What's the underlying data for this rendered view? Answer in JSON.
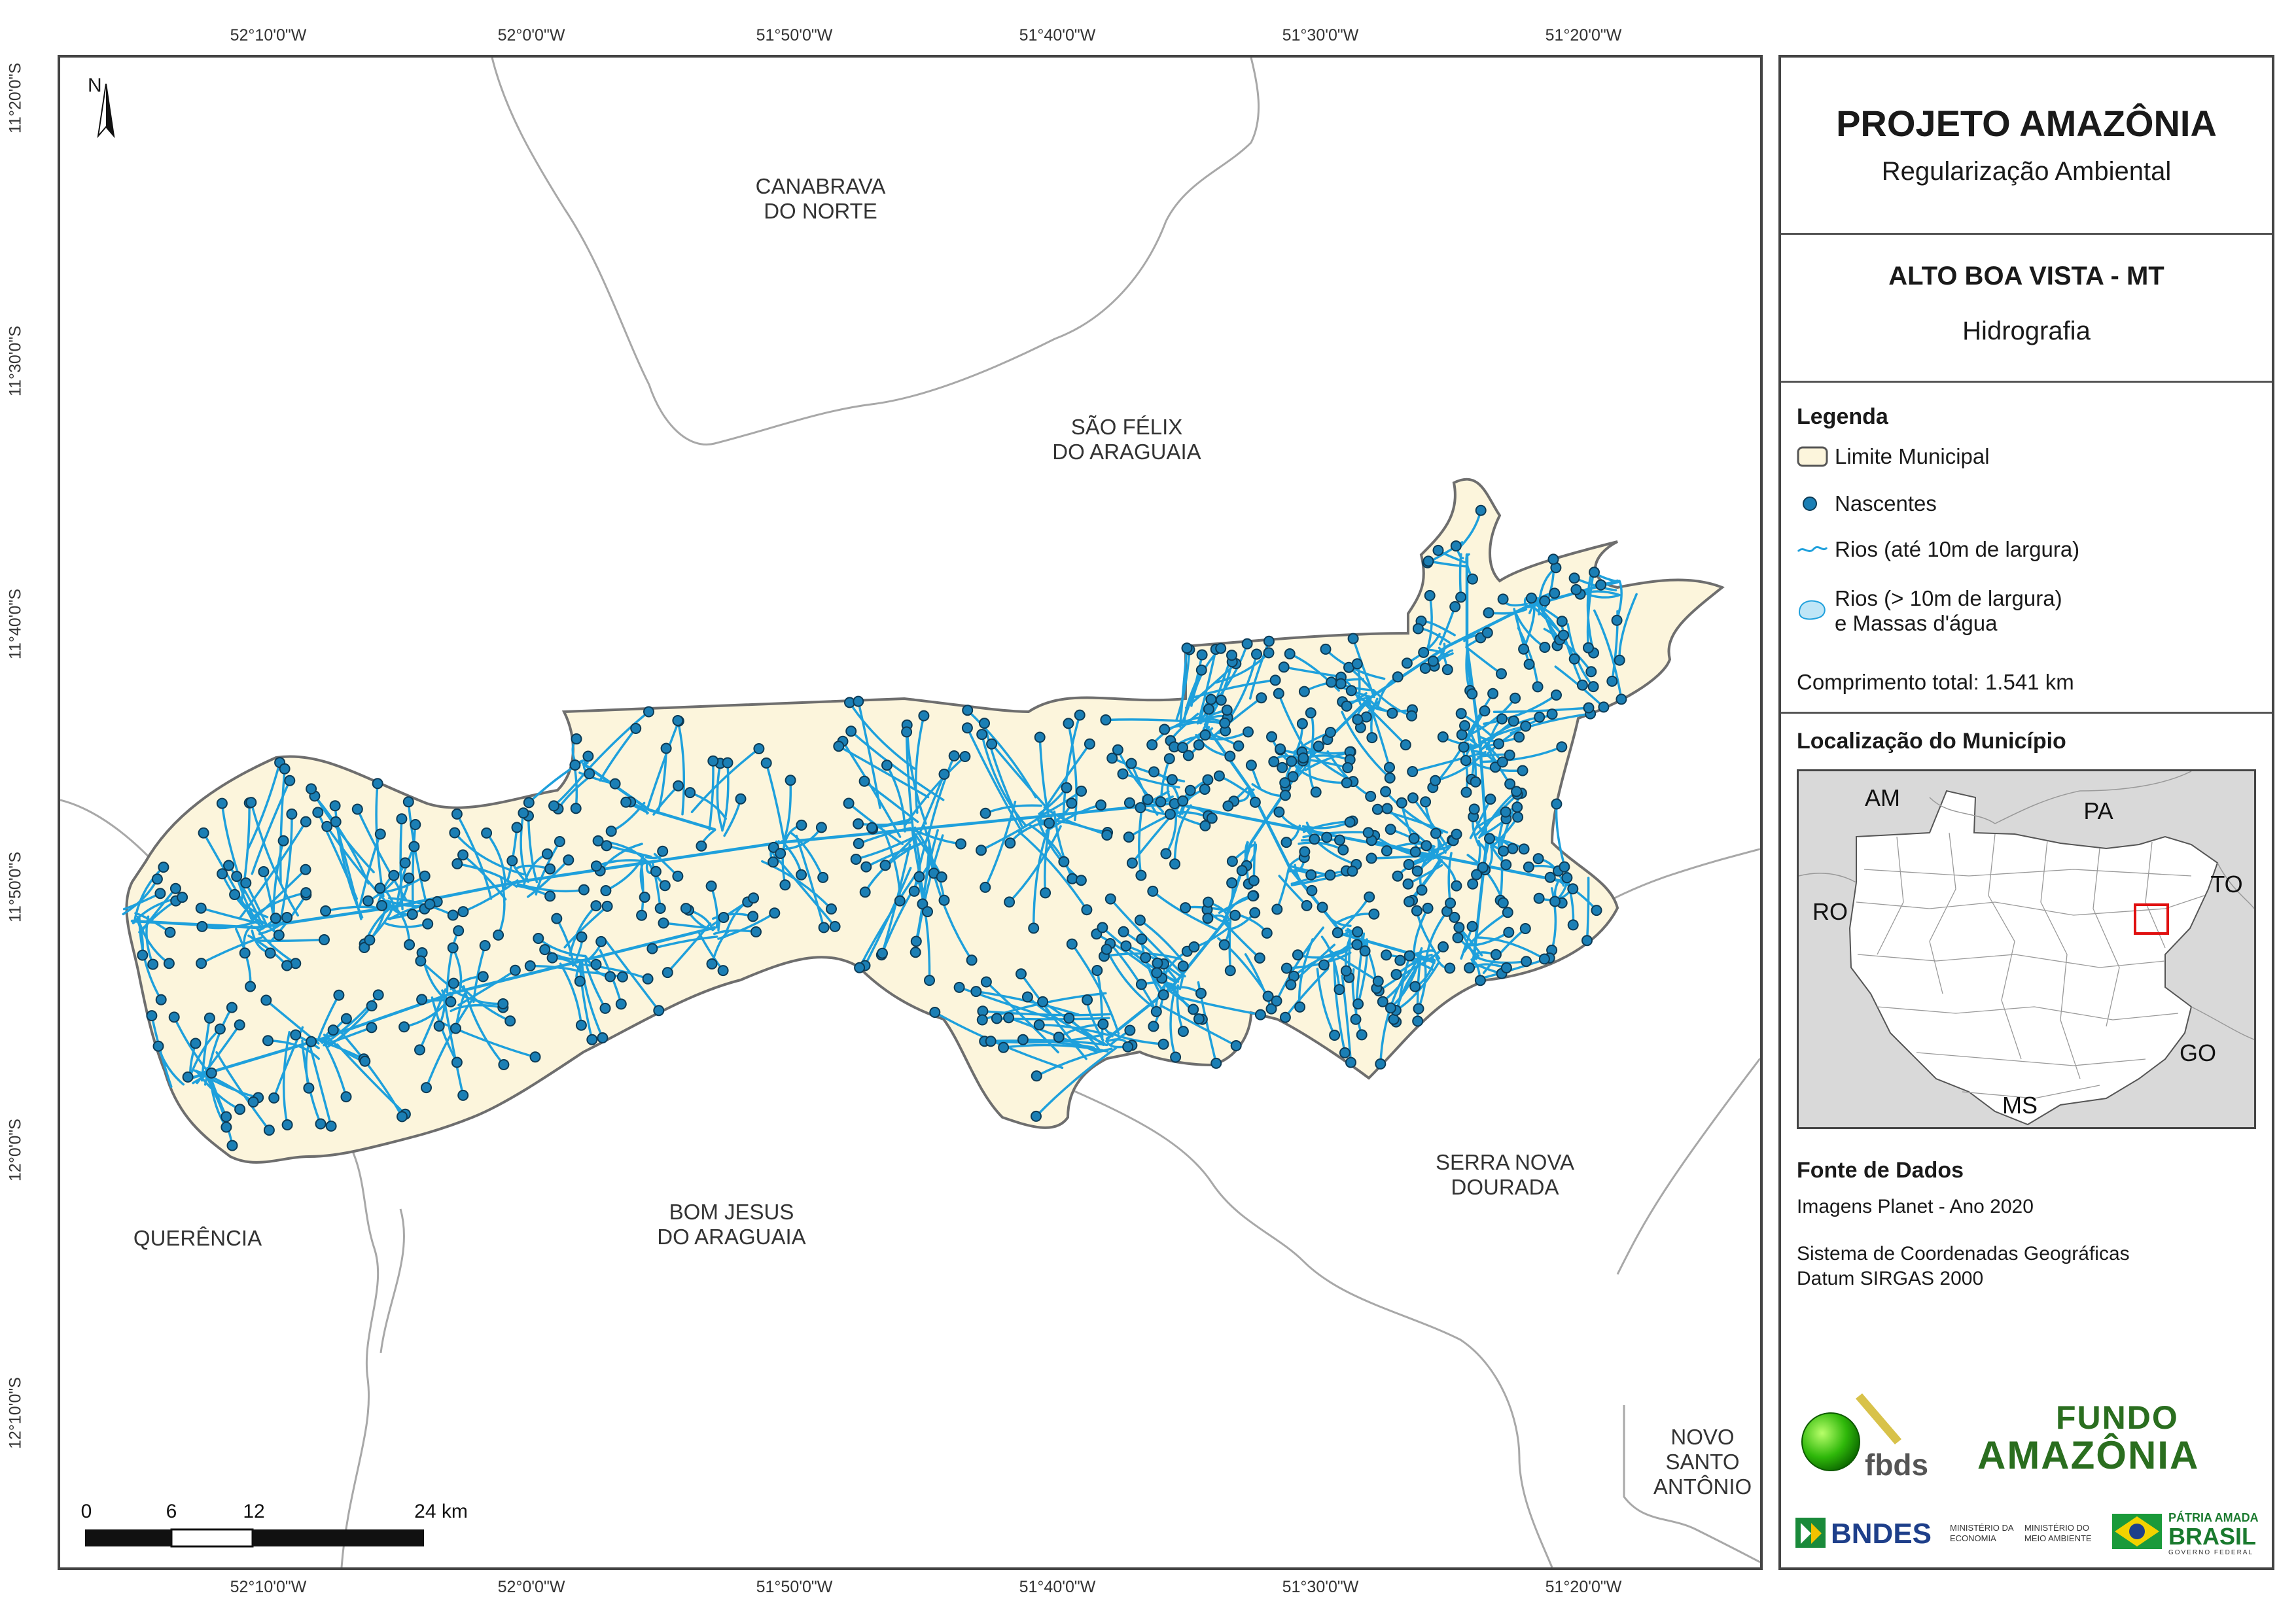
{
  "north_arrow": {
    "label": "N"
  },
  "coordinates": {
    "longitudes": [
      "52°10'0\"W",
      "52°0'0\"W",
      "51°50'0\"W",
      "51°40'0\"W",
      "51°30'0\"W",
      "51°20'0\"W"
    ],
    "latitudes": [
      "11°20'0\"S",
      "11°30'0\"S",
      "11°40'0\"S",
      "11°50'0\"S",
      "12°0'0\"S",
      "12°10'0\"S"
    ]
  },
  "places": {
    "canabrava": "CANABRAVA\nDO NORTE",
    "sao_felix": "SÃO FÉLIX\nDO ARAGUAIA",
    "querencia": "QUERÊNCIA",
    "bom_jesus": "BOM JESUS\nDO ARAGUAIA",
    "serra_nova": "SERRA NOVA\nDOURADA",
    "novo_santo": "NOVO\nSANTO\nANTÔNIO"
  },
  "scale_bar": {
    "labels": [
      "0",
      "6",
      "12",
      "24 km"
    ]
  },
  "title": {
    "project": "PROJETO AMAZÔNIA",
    "subtitle": "Regularização Ambiental",
    "municipality": "ALTO BOA VISTA - MT",
    "theme": "Hidrografia"
  },
  "legend": {
    "heading": "Legenda",
    "items": {
      "limit": "Limite Municipal",
      "springs": "Nascentes",
      "rivers_small": "Rios (até 10m de largura)",
      "rivers_large_1": "Rios (> 10m de largura)",
      "rivers_large_2": "e Massas d'água"
    },
    "total_label": "Comprimento total:",
    "total_value": "1.541 km"
  },
  "locator": {
    "heading": "Localização do Município",
    "states": [
      "AM",
      "PA",
      "RO",
      "TO",
      "GO",
      "MS"
    ]
  },
  "sources": {
    "heading": "Fonte de Dados",
    "line1": "Imagens Planet - Ano 2020",
    "line2": "Sistema de Coordenadas Geográficas",
    "line3": "Datum SIRGAS 2000"
  },
  "logos": {
    "fbds": "fbds",
    "fundo_1": "FUNDO",
    "fundo_2": "AMAZÔNIA",
    "bndes": "BNDES",
    "min_economia": "MINISTÉRIO DA\nECONOMIA",
    "min_meio": "MINISTÉRIO DO\nMEIO AMBIENTE",
    "patria": "PÁTRIA AMADA",
    "brasil": "BRASIL",
    "governo": "GOVERNO FEDERAL"
  },
  "colors": {
    "municipality_fill": "#fcf5dc",
    "rivers": "#1ea0dc",
    "springs": "#1b7fb5",
    "boundary": "#6e6e6e",
    "locator_highlight": "#e01010"
  }
}
